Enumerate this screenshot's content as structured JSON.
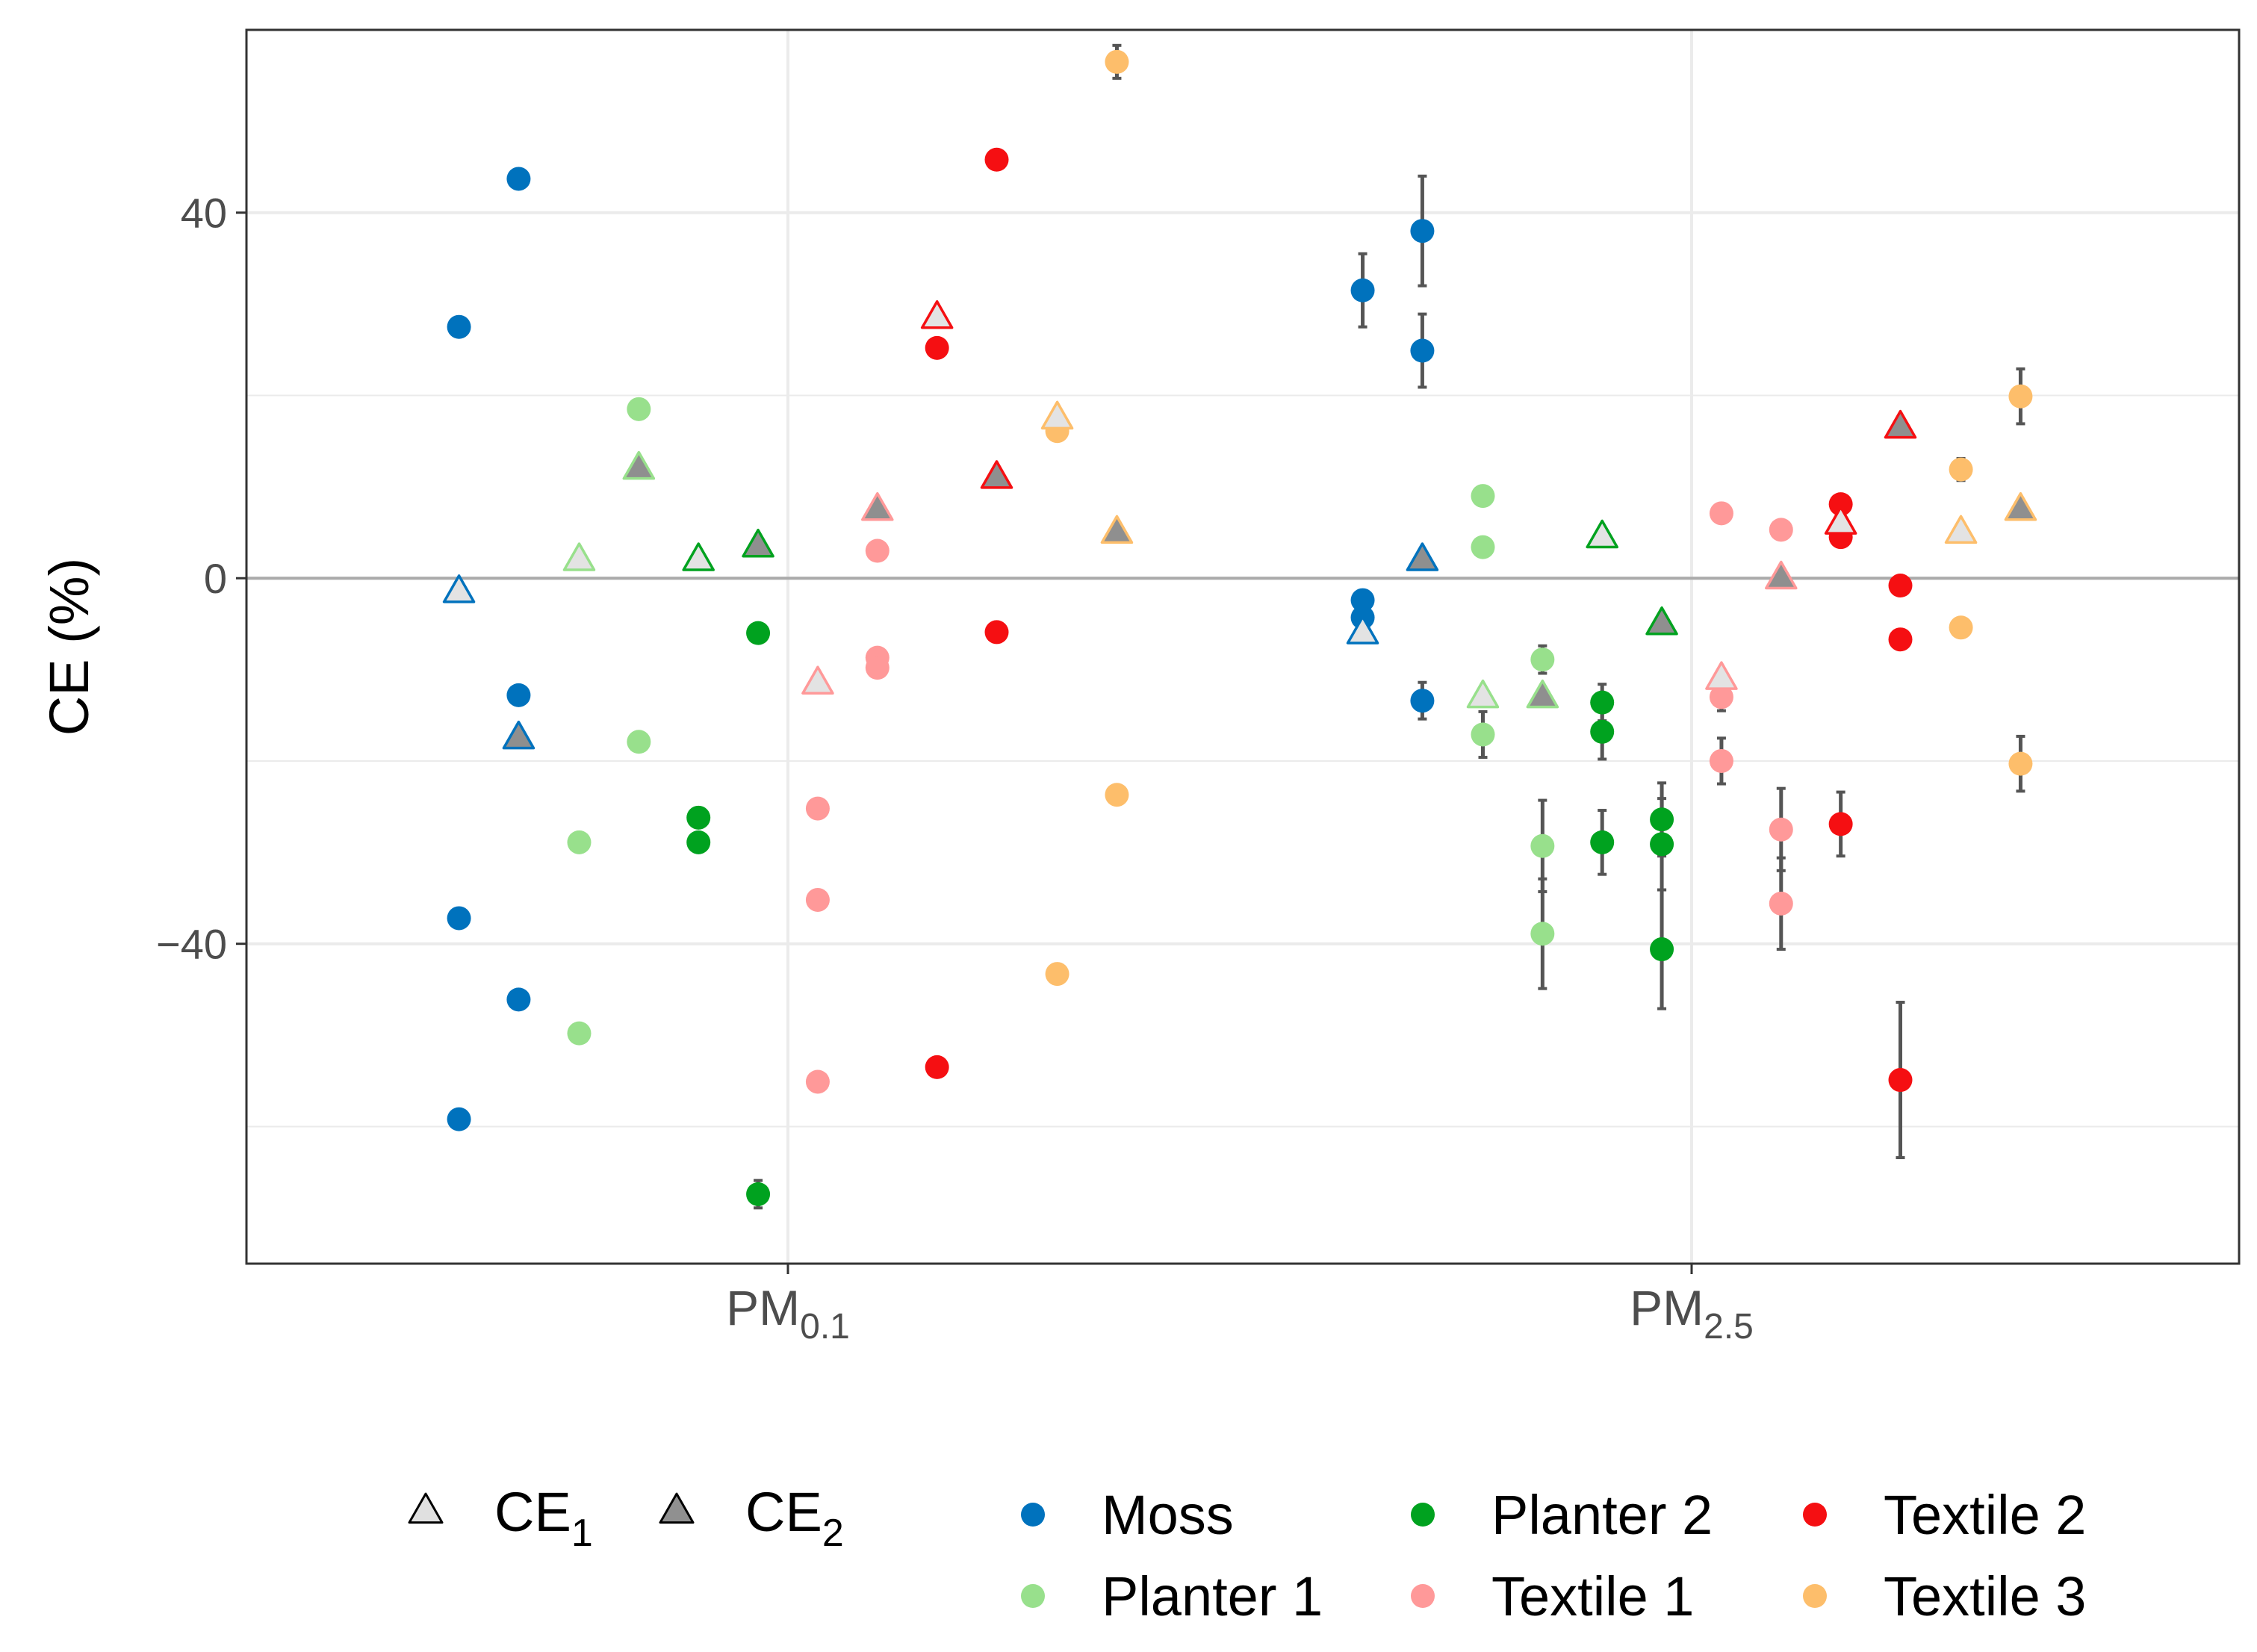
{
  "chart_data": {
    "type": "scatter",
    "title": "",
    "ylabel": "CE (%)",
    "ylim": [
      -75,
      60
    ],
    "yticks": [
      -40,
      0,
      40
    ],
    "ytick_labels": [
      "−40",
      "0",
      "40"
    ],
    "categories": [
      {
        "base": "PM",
        "sub": "0.1"
      },
      {
        "base": "PM",
        "sub": "2.5"
      }
    ],
    "shape_legend": [
      {
        "base": "CE",
        "sub": "1",
        "fill": "#e0e0e0",
        "shape": "open-triangle"
      },
      {
        "base": "CE",
        "sub": "2",
        "fill": "#909090",
        "shape": "filled-triangle"
      }
    ],
    "series": [
      {
        "name": "Moss",
        "color": "#0072BD"
      },
      {
        "name": "Planter 1",
        "color": "#98E08C"
      },
      {
        "name": "Planter 2",
        "color": "#00A21F"
      },
      {
        "name": "Textile 1",
        "color": "#FF9999"
      },
      {
        "name": "Textile 2",
        "color": "#F50F12"
      },
      {
        "name": "Textile 3",
        "color": "#FDBE6B"
      }
    ],
    "points": [
      {
        "series": "Moss",
        "cat": 0,
        "offset": -0.364,
        "shape": "circle",
        "y": 27.5
      },
      {
        "series": "Moss",
        "cat": 0,
        "offset": -0.364,
        "shape": "circle",
        "y": -37.2
      },
      {
        "series": "Moss",
        "cat": 0,
        "offset": -0.364,
        "shape": "circle",
        "y": -59.2,
        "err": 1
      },
      {
        "series": "Moss",
        "cat": 0,
        "offset": -0.364,
        "shape": "tri1",
        "y": -1.5
      },
      {
        "series": "Moss",
        "cat": 0,
        "offset": -0.298,
        "shape": "circle",
        "y": 43.7,
        "err": 0.8
      },
      {
        "series": "Moss",
        "cat": 0,
        "offset": -0.298,
        "shape": "circle",
        "y": -12.8
      },
      {
        "series": "Moss",
        "cat": 0,
        "offset": -0.298,
        "shape": "circle",
        "y": -46.1,
        "err": 0.8
      },
      {
        "series": "Moss",
        "cat": 0,
        "offset": -0.298,
        "shape": "tri2",
        "y": -17.5
      },
      {
        "series": "Planter 1",
        "cat": 0,
        "offset": -0.231,
        "shape": "circle",
        "y": -28.9
      },
      {
        "series": "Planter 1",
        "cat": 0,
        "offset": -0.231,
        "shape": "circle",
        "y": -49.8,
        "err": 0.8
      },
      {
        "series": "Planter 1",
        "cat": 0,
        "offset": -0.231,
        "shape": "tri1",
        "y": 2.0
      },
      {
        "series": "Planter 1",
        "cat": 0,
        "offset": -0.165,
        "shape": "circle",
        "y": 18.5
      },
      {
        "series": "Planter 1",
        "cat": 0,
        "offset": -0.165,
        "shape": "circle",
        "y": -17.9
      },
      {
        "series": "Planter 1",
        "cat": 0,
        "offset": -0.165,
        "shape": "tri2",
        "y": 12.0
      },
      {
        "series": "Planter 2",
        "cat": 0,
        "offset": -0.099,
        "shape": "circle",
        "y": -26.2
      },
      {
        "series": "Planter 2",
        "cat": 0,
        "offset": -0.099,
        "shape": "circle",
        "y": -28.9
      },
      {
        "series": "Planter 2",
        "cat": 0,
        "offset": -0.099,
        "shape": "tri1",
        "y": 2.0
      },
      {
        "series": "Planter 2",
        "cat": 0,
        "offset": -0.033,
        "shape": "circle",
        "y": -6.0
      },
      {
        "series": "Planter 2",
        "cat": 0,
        "offset": -0.033,
        "shape": "circle",
        "y": -67.4,
        "err": 1.5
      },
      {
        "series": "Planter 2",
        "cat": 0,
        "offset": -0.033,
        "shape": "tri2",
        "y": 3.5
      },
      {
        "series": "Textile 1",
        "cat": 0,
        "offset": 0.033,
        "shape": "circle",
        "y": -25.2
      },
      {
        "series": "Textile 1",
        "cat": 0,
        "offset": 0.033,
        "shape": "circle",
        "y": -35.2
      },
      {
        "series": "Textile 1",
        "cat": 0,
        "offset": 0.033,
        "shape": "circle",
        "y": -55.1,
        "err": 1
      },
      {
        "series": "Textile 1",
        "cat": 0,
        "offset": 0.033,
        "shape": "tri1",
        "y": -11.5
      },
      {
        "series": "Textile 1",
        "cat": 0,
        "offset": 0.099,
        "shape": "circle",
        "y": 3.0
      },
      {
        "series": "Textile 1",
        "cat": 0,
        "offset": 0.099,
        "shape": "circle",
        "y": -8.7
      },
      {
        "series": "Textile 1",
        "cat": 0,
        "offset": 0.099,
        "shape": "circle",
        "y": -9.8
      },
      {
        "series": "Textile 1",
        "cat": 0,
        "offset": 0.099,
        "shape": "tri2",
        "y": 7.5
      },
      {
        "series": "Textile 2",
        "cat": 0,
        "offset": 0.165,
        "shape": "circle",
        "y": 25.2
      },
      {
        "series": "Textile 2",
        "cat": 0,
        "offset": 0.165,
        "shape": "circle",
        "y": -53.5
      },
      {
        "series": "Textile 2",
        "cat": 0,
        "offset": 0.165,
        "shape": "tri1",
        "y": 28.5
      },
      {
        "series": "Textile 2",
        "cat": 0,
        "offset": 0.231,
        "shape": "circle",
        "y": 45.8
      },
      {
        "series": "Textile 2",
        "cat": 0,
        "offset": 0.231,
        "shape": "circle",
        "y": -5.9
      },
      {
        "series": "Textile 2",
        "cat": 0,
        "offset": 0.231,
        "shape": "tri2",
        "y": 11.0
      },
      {
        "series": "Textile 3",
        "cat": 0,
        "offset": 0.298,
        "shape": "circle",
        "y": 16.1
      },
      {
        "series": "Textile 3",
        "cat": 0,
        "offset": 0.298,
        "shape": "circle",
        "y": -43.3
      },
      {
        "series": "Textile 3",
        "cat": 0,
        "offset": 0.298,
        "shape": "tri1",
        "y": 17.5
      },
      {
        "series": "Textile 3",
        "cat": 0,
        "offset": 0.364,
        "shape": "circle",
        "y": 56.5,
        "err": 1.8
      },
      {
        "series": "Textile 3",
        "cat": 0,
        "offset": 0.364,
        "shape": "circle",
        "y": -23.7
      },
      {
        "series": "Textile 3",
        "cat": 0,
        "offset": 0.364,
        "shape": "tri2",
        "y": 5.0
      },
      {
        "series": "Moss",
        "cat": 1,
        "offset": -0.364,
        "shape": "circle",
        "y": 31.5,
        "err": 4
      },
      {
        "series": "Moss",
        "cat": 1,
        "offset": -0.364,
        "shape": "circle",
        "y": -2.4
      },
      {
        "series": "Moss",
        "cat": 1,
        "offset": -0.364,
        "shape": "circle",
        "y": -4.3
      },
      {
        "series": "Moss",
        "cat": 1,
        "offset": -0.364,
        "shape": "tri1",
        "y": -6.0
      },
      {
        "series": "Moss",
        "cat": 1,
        "offset": -0.298,
        "shape": "circle",
        "y": 38.0,
        "err": 6
      },
      {
        "series": "Moss",
        "cat": 1,
        "offset": -0.298,
        "shape": "circle",
        "y": 24.9,
        "err": 4
      },
      {
        "series": "Moss",
        "cat": 1,
        "offset": -0.298,
        "shape": "circle",
        "y": -13.4,
        "err": 2
      },
      {
        "series": "Moss",
        "cat": 1,
        "offset": -0.298,
        "shape": "tri2",
        "y": 2.0
      },
      {
        "series": "Planter 1",
        "cat": 1,
        "offset": -0.231,
        "shape": "circle",
        "y": 9.0
      },
      {
        "series": "Planter 1",
        "cat": 1,
        "offset": -0.231,
        "shape": "circle",
        "y": 3.4
      },
      {
        "series": "Planter 1",
        "cat": 1,
        "offset": -0.231,
        "shape": "circle",
        "y": -17.1,
        "err": 2.5
      },
      {
        "series": "Planter 1",
        "cat": 1,
        "offset": -0.231,
        "shape": "tri1",
        "y": -13.0
      },
      {
        "series": "Planter 1",
        "cat": 1,
        "offset": -0.165,
        "shape": "circle",
        "y": -8.9,
        "err": 1.5
      },
      {
        "series": "Planter 1",
        "cat": 1,
        "offset": -0.165,
        "shape": "circle",
        "y": -29.3,
        "err": 5
      },
      {
        "series": "Planter 1",
        "cat": 1,
        "offset": -0.165,
        "shape": "circle",
        "y": -38.9,
        "err": 6
      },
      {
        "series": "Planter 1",
        "cat": 1,
        "offset": -0.165,
        "shape": "tri2",
        "y": -13.0
      },
      {
        "series": "Planter 2",
        "cat": 1,
        "offset": -0.099,
        "shape": "circle",
        "y": -13.6,
        "err": 2
      },
      {
        "series": "Planter 2",
        "cat": 1,
        "offset": -0.099,
        "shape": "circle",
        "y": -16.8,
        "err": 3
      },
      {
        "series": "Planter 2",
        "cat": 1,
        "offset": -0.099,
        "shape": "circle",
        "y": -28.9,
        "err": 3.5
      },
      {
        "series": "Planter 2",
        "cat": 1,
        "offset": -0.099,
        "shape": "tri1",
        "y": 4.5
      },
      {
        "series": "Planter 2",
        "cat": 1,
        "offset": -0.033,
        "shape": "circle",
        "y": -26.4,
        "err": 4
      },
      {
        "series": "Planter 2",
        "cat": 1,
        "offset": -0.033,
        "shape": "circle",
        "y": -29.1,
        "err": 5
      },
      {
        "series": "Planter 2",
        "cat": 1,
        "offset": -0.033,
        "shape": "circle",
        "y": -40.6,
        "err": 6.5
      },
      {
        "series": "Planter 2",
        "cat": 1,
        "offset": -0.033,
        "shape": "tri2",
        "y": -5.0
      },
      {
        "series": "Textile 1",
        "cat": 1,
        "offset": 0.033,
        "shape": "circle",
        "y": 7.1
      },
      {
        "series": "Textile 1",
        "cat": 1,
        "offset": 0.033,
        "shape": "circle",
        "y": -13.0,
        "err": 1.5
      },
      {
        "series": "Textile 1",
        "cat": 1,
        "offset": 0.033,
        "shape": "circle",
        "y": -20.0,
        "err": 2.5
      },
      {
        "series": "Textile 1",
        "cat": 1,
        "offset": 0.033,
        "shape": "tri1",
        "y": -11.0
      },
      {
        "series": "Textile 1",
        "cat": 1,
        "offset": 0.099,
        "shape": "circle",
        "y": 5.3
      },
      {
        "series": "Textile 1",
        "cat": 1,
        "offset": 0.099,
        "shape": "circle",
        "y": -27.5,
        "err": 4.5
      },
      {
        "series": "Textile 1",
        "cat": 1,
        "offset": 0.099,
        "shape": "circle",
        "y": -35.6,
        "err": 5
      },
      {
        "series": "Textile 1",
        "cat": 1,
        "offset": 0.099,
        "shape": "tri2",
        "y": 0
      },
      {
        "series": "Textile 2",
        "cat": 1,
        "offset": 0.165,
        "shape": "circle",
        "y": 8.1
      },
      {
        "series": "Textile 2",
        "cat": 1,
        "offset": 0.165,
        "shape": "circle",
        "y": 4.5
      },
      {
        "series": "Textile 2",
        "cat": 1,
        "offset": 0.165,
        "shape": "circle",
        "y": -26.9,
        "err": 3.5
      },
      {
        "series": "Textile 2",
        "cat": 1,
        "offset": 0.165,
        "shape": "tri1",
        "y": 6.0
      },
      {
        "series": "Textile 2",
        "cat": 1,
        "offset": 0.231,
        "shape": "circle",
        "y": -0.8
      },
      {
        "series": "Textile 2",
        "cat": 1,
        "offset": 0.231,
        "shape": "circle",
        "y": -6.7
      },
      {
        "series": "Textile 2",
        "cat": 1,
        "offset": 0.231,
        "shape": "circle",
        "y": -54.9,
        "err": 8.5
      },
      {
        "series": "Textile 2",
        "cat": 1,
        "offset": 0.231,
        "shape": "tri2",
        "y": 16.5
      },
      {
        "series": "Textile 3",
        "cat": 1,
        "offset": 0.298,
        "shape": "circle",
        "y": 11.9,
        "err": 1.2
      },
      {
        "series": "Textile 3",
        "cat": 1,
        "offset": 0.298,
        "shape": "circle",
        "y": -5.4
      },
      {
        "series": "Textile 3",
        "cat": 1,
        "offset": 0.298,
        "shape": "tri1",
        "y": 5.0
      },
      {
        "series": "Textile 3",
        "cat": 1,
        "offset": 0.364,
        "shape": "circle",
        "y": 19.9,
        "err": 3
      },
      {
        "series": "Textile 3",
        "cat": 1,
        "offset": 0.364,
        "shape": "circle",
        "y": -20.3,
        "err": 3
      },
      {
        "series": "Textile 3",
        "cat": 1,
        "offset": 0.364,
        "shape": "tri2",
        "y": 7.5
      }
    ]
  }
}
